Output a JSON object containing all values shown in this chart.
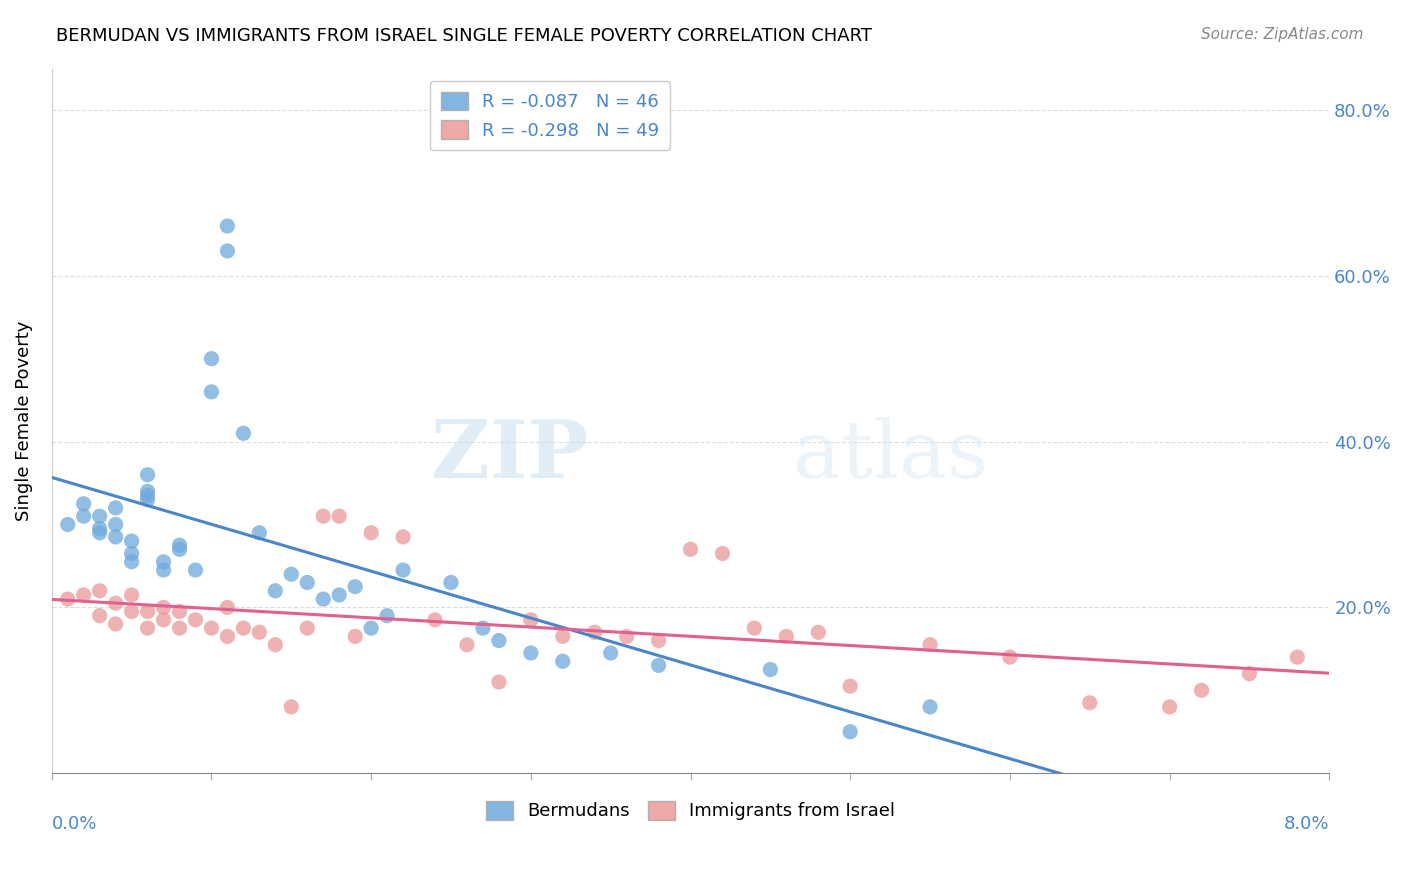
{
  "title": "BERMUDAN VS IMMIGRANTS FROM ISRAEL SINGLE FEMALE POVERTY CORRELATION CHART",
  "source": "Source: ZipAtlas.com",
  "ylabel": "Single Female Poverty",
  "xlim": [
    0.0,
    0.08
  ],
  "ylim": [
    0.0,
    0.85
  ],
  "yticks": [
    0.0,
    0.2,
    0.4,
    0.6,
    0.8
  ],
  "ytick_labels": [
    "",
    "20.0%",
    "40.0%",
    "60.0%",
    "80.0%"
  ],
  "legend_entries": [
    {
      "label": "R = -0.087   N = 46",
      "color": "#6fa8dc"
    },
    {
      "label": "R = -0.298   N = 49",
      "color": "#ea9999"
    }
  ],
  "legend_bottom": [
    "Bermudans",
    "Immigrants from Israel"
  ],
  "blue_color": "#6fa8dc",
  "pink_color": "#ea9999",
  "blue_line_color": "#4a86c8",
  "pink_line_color": "#e06090",
  "dash_line_color": "#aaaaaa",
  "watermark_zip": "ZIP",
  "watermark_atlas": "atlas",
  "bermudans_x": [
    0.001,
    0.002,
    0.002,
    0.003,
    0.003,
    0.003,
    0.004,
    0.004,
    0.004,
    0.005,
    0.005,
    0.005,
    0.006,
    0.006,
    0.006,
    0.006,
    0.007,
    0.007,
    0.008,
    0.008,
    0.009,
    0.01,
    0.01,
    0.011,
    0.011,
    0.012,
    0.013,
    0.014,
    0.015,
    0.016,
    0.017,
    0.018,
    0.019,
    0.02,
    0.021,
    0.022,
    0.025,
    0.027,
    0.028,
    0.03,
    0.032,
    0.035,
    0.038,
    0.045,
    0.05,
    0.055
  ],
  "bermudans_y": [
    0.3,
    0.31,
    0.325,
    0.29,
    0.295,
    0.31,
    0.285,
    0.3,
    0.32,
    0.255,
    0.265,
    0.28,
    0.33,
    0.34,
    0.335,
    0.36,
    0.245,
    0.255,
    0.27,
    0.275,
    0.245,
    0.46,
    0.5,
    0.63,
    0.66,
    0.41,
    0.29,
    0.22,
    0.24,
    0.23,
    0.21,
    0.215,
    0.225,
    0.175,
    0.19,
    0.245,
    0.23,
    0.175,
    0.16,
    0.145,
    0.135,
    0.145,
    0.13,
    0.125,
    0.05,
    0.08
  ],
  "israel_x": [
    0.001,
    0.002,
    0.003,
    0.003,
    0.004,
    0.004,
    0.005,
    0.005,
    0.006,
    0.006,
    0.007,
    0.007,
    0.008,
    0.008,
    0.009,
    0.01,
    0.011,
    0.011,
    0.012,
    0.013,
    0.014,
    0.015,
    0.016,
    0.017,
    0.018,
    0.019,
    0.02,
    0.022,
    0.024,
    0.026,
    0.028,
    0.03,
    0.032,
    0.034,
    0.036,
    0.038,
    0.04,
    0.042,
    0.044,
    0.046,
    0.048,
    0.05,
    0.055,
    0.06,
    0.065,
    0.07,
    0.072,
    0.075,
    0.078
  ],
  "israel_y": [
    0.21,
    0.215,
    0.22,
    0.19,
    0.18,
    0.205,
    0.195,
    0.215,
    0.175,
    0.195,
    0.185,
    0.2,
    0.175,
    0.195,
    0.185,
    0.175,
    0.165,
    0.2,
    0.175,
    0.17,
    0.155,
    0.08,
    0.175,
    0.31,
    0.31,
    0.165,
    0.29,
    0.285,
    0.185,
    0.155,
    0.11,
    0.185,
    0.165,
    0.17,
    0.165,
    0.16,
    0.27,
    0.265,
    0.175,
    0.165,
    0.17,
    0.105,
    0.155,
    0.14,
    0.085,
    0.08,
    0.1,
    0.12,
    0.14
  ]
}
